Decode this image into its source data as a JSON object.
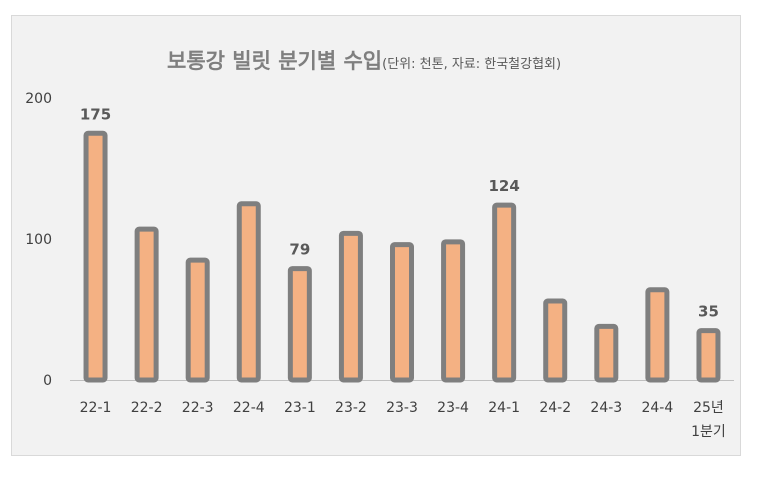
{
  "chart_data": {
    "type": "bar",
    "title": "보통강 빌릿 분기별 수입",
    "subtitle": "(단위: 천톤, 자료: 한국철강협회)",
    "xlabel": "",
    "ylabel": "",
    "ylim": [
      0,
      200
    ],
    "yticks": [
      "0",
      "100",
      "200"
    ],
    "grid": false,
    "categories": [
      [
        "22-1"
      ],
      [
        "22-2"
      ],
      [
        "22-3"
      ],
      [
        "22-4"
      ],
      [
        "23-1"
      ],
      [
        "23-2"
      ],
      [
        "23-3"
      ],
      [
        "23-4"
      ],
      [
        "24-1"
      ],
      [
        "24-2"
      ],
      [
        "24-3"
      ],
      [
        "24-4"
      ],
      [
        "25년",
        "1분기"
      ]
    ],
    "values": [
      175,
      107,
      85,
      125,
      79,
      104,
      96,
      98,
      124,
      56,
      38,
      64,
      35
    ],
    "data_labels": [
      {
        "index": 0,
        "text": "175"
      },
      {
        "index": 4,
        "text": "79"
      },
      {
        "index": 8,
        "text": "124"
      },
      {
        "index": 12,
        "text": "35",
        "highlight": true
      }
    ],
    "colors": {
      "bar_fill": "#f4b183",
      "bar_border": "#7f7f7f",
      "highlight_label": "#c55a11",
      "axis": "#bfbfbf"
    }
  }
}
